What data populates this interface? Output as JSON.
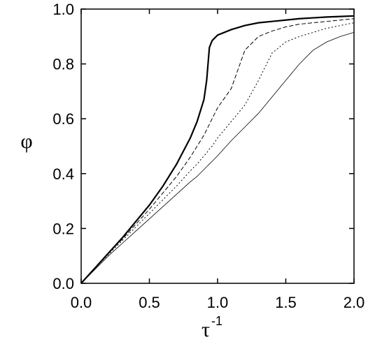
{
  "chart_data": {
    "type": "line",
    "xlabel": "τ",
    "xlabel_sup": "-1",
    "ylabel": "φ",
    "x": [
      0,
      0.1,
      0.2,
      0.3,
      0.4,
      0.5,
      0.6,
      0.7,
      0.8,
      0.85,
      0.9,
      0.92,
      0.94,
      0.96,
      1.0,
      1.1,
      1.2,
      1.3,
      1.4,
      1.5,
      1.6,
      1.7,
      1.8,
      1.9,
      2.0
    ],
    "series": [
      {
        "color": "#000000",
        "width": 2.2,
        "dash": "none",
        "values": [
          0,
          0.055,
          0.11,
          0.165,
          0.225,
          0.285,
          0.355,
          0.435,
          0.53,
          0.59,
          0.67,
          0.74,
          0.86,
          0.885,
          0.905,
          0.925,
          0.94,
          0.95,
          0.955,
          0.96,
          0.965,
          0.968,
          0.971,
          0.973,
          0.975
        ]
      },
      {
        "color": "#000000",
        "width": 1,
        "dash": "6,3",
        "values": [
          0,
          0.055,
          0.11,
          0.16,
          0.215,
          0.27,
          0.33,
          0.39,
          0.46,
          0.5,
          0.54,
          0.56,
          0.58,
          0.6,
          0.64,
          0.71,
          0.85,
          0.9,
          0.92,
          0.935,
          0.945,
          0.95,
          0.955,
          0.96,
          0.965
        ]
      },
      {
        "color": "#000000",
        "width": 1,
        "dash": "2,3",
        "values": [
          0,
          0.055,
          0.105,
          0.155,
          0.205,
          0.255,
          0.305,
          0.355,
          0.41,
          0.435,
          0.465,
          0.475,
          0.49,
          0.5,
          0.53,
          0.59,
          0.65,
          0.74,
          0.84,
          0.88,
          0.9,
          0.915,
          0.93,
          0.94,
          0.95
        ]
      },
      {
        "color": "#000000",
        "width": 0.8,
        "dash": "none",
        "values": [
          0,
          0.05,
          0.1,
          0.145,
          0.19,
          0.235,
          0.28,
          0.325,
          0.37,
          0.39,
          0.415,
          0.425,
          0.435,
          0.445,
          0.465,
          0.52,
          0.57,
          0.62,
          0.68,
          0.74,
          0.8,
          0.85,
          0.88,
          0.9,
          0.915
        ]
      }
    ],
    "xlim": [
      0,
      2.0
    ],
    "ylim": [
      0,
      1.0
    ],
    "xticks": [
      {
        "value": 0,
        "label": "0.0"
      },
      0.5,
      {
        "value": 1,
        "label": "1.0"
      },
      1.5,
      {
        "value": 2,
        "label": "2.0"
      }
    ],
    "yticks": [
      {
        "value": 0,
        "label": "0.0"
      },
      0.2,
      0.4,
      0.6,
      0.8,
      {
        "value": 1,
        "label": "1.0"
      }
    ],
    "grid": false
  }
}
